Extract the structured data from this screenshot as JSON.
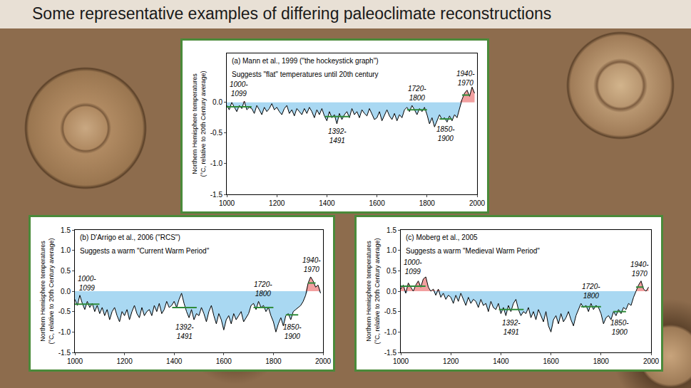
{
  "title": "Some representative examples of differing paleoclimate reconstructions",
  "chart_data": [
    {
      "type": "line",
      "title": "(a) Mann et al., 1999 (\"the hockeystick graph\")",
      "subtitle": "Suggests \"flat\" temperatures until 20th century",
      "y_label": "Northern Hemisphere temperatures (°C, relative to 20th Century average)",
      "color": "#000000",
      "x": [
        1000,
        1010,
        1020,
        1030,
        1040,
        1050,
        1060,
        1070,
        1080,
        1090,
        1100,
        1110,
        1120,
        1130,
        1140,
        1150,
        1160,
        1170,
        1180,
        1190,
        1200,
        1210,
        1220,
        1230,
        1240,
        1250,
        1260,
        1270,
        1280,
        1290,
        1300,
        1310,
        1320,
        1330,
        1340,
        1350,
        1360,
        1370,
        1380,
        1390,
        1400,
        1410,
        1420,
        1430,
        1440,
        1450,
        1460,
        1470,
        1480,
        1490,
        1500,
        1510,
        1520,
        1530,
        1540,
        1550,
        1560,
        1570,
        1580,
        1590,
        1600,
        1610,
        1620,
        1630,
        1640,
        1650,
        1660,
        1670,
        1680,
        1690,
        1700,
        1710,
        1720,
        1730,
        1740,
        1750,
        1760,
        1770,
        1780,
        1790,
        1800,
        1810,
        1820,
        1830,
        1840,
        1850,
        1860,
        1870,
        1880,
        1890,
        1900,
        1910,
        1920,
        1930,
        1940,
        1950,
        1960,
        1970,
        1980,
        1990
      ],
      "values": [
        -0.05,
        -0.12,
        0.0,
        -0.08,
        -0.15,
        -0.05,
        -0.1,
        0.02,
        -0.12,
        -0.08,
        -0.1,
        -0.18,
        -0.05,
        -0.12,
        -0.2,
        -0.08,
        -0.15,
        -0.1,
        -0.02,
        -0.12,
        -0.08,
        -0.15,
        -0.2,
        -0.1,
        -0.05,
        -0.18,
        -0.12,
        -0.22,
        -0.1,
        -0.15,
        -0.2,
        -0.1,
        -0.18,
        -0.08,
        -0.15,
        -0.25,
        -0.12,
        -0.2,
        -0.1,
        -0.22,
        -0.3,
        -0.15,
        -0.25,
        -0.2,
        -0.35,
        -0.18,
        -0.28,
        -0.2,
        -0.15,
        -0.25,
        -0.1,
        -0.2,
        -0.15,
        -0.25,
        -0.12,
        -0.18,
        -0.22,
        -0.1,
        -0.2,
        -0.28,
        -0.25,
        -0.15,
        -0.3,
        -0.2,
        -0.12,
        -0.22,
        -0.28,
        -0.18,
        -0.3,
        -0.2,
        -0.25,
        -0.12,
        -0.08,
        -0.15,
        -0.05,
        -0.12,
        -0.2,
        -0.1,
        -0.15,
        -0.08,
        -0.2,
        -0.35,
        -0.25,
        -0.4,
        -0.3,
        -0.2,
        -0.28,
        -0.25,
        -0.32,
        -0.22,
        -0.3,
        -0.2,
        -0.25,
        -0.1,
        0.05,
        0.15,
        0.2,
        0.1,
        0.25,
        0.15
      ],
      "periods": [
        {
          "label": "1000-1099",
          "start": 1000,
          "end": 1099,
          "mean": -0.07
        },
        {
          "label": "1392-1491",
          "start": 1392,
          "end": 1491,
          "mean": -0.23
        },
        {
          "label": "1720-1800",
          "start": 1720,
          "end": 1800,
          "mean": -0.12
        },
        {
          "label": "1850-1900",
          "start": 1850,
          "end": 1900,
          "mean": -0.27
        },
        {
          "label": "1940-1970",
          "start": 1940,
          "end": 1970,
          "mean": 0.12
        }
      ],
      "xlim": [
        1000,
        2000
      ],
      "xticks": [
        1000,
        1200,
        1400,
        1600,
        1800,
        2000
      ],
      "ylim": [
        -1.5,
        0.8
      ],
      "yticks": [
        {
          "value": 0,
          "label": "0.0"
        },
        -0.5,
        {
          "value": -1,
          "label": "-1.0"
        },
        -1.5
      ],
      "grid": false
    },
    {
      "type": "line",
      "title": "(b) D'Arrigo et al., 2006 (\"RCS\")",
      "subtitle": "Suggests a warm \"Current Warm Period\"",
      "y_label": "Northern Hemisphere temperatures (°C, relative to 20th Century average)",
      "color": "#000000",
      "x": [
        1000,
        1010,
        1020,
        1030,
        1040,
        1050,
        1060,
        1070,
        1080,
        1090,
        1100,
        1110,
        1120,
        1130,
        1140,
        1150,
        1160,
        1170,
        1180,
        1190,
        1200,
        1210,
        1220,
        1230,
        1240,
        1250,
        1260,
        1270,
        1280,
        1290,
        1300,
        1310,
        1320,
        1330,
        1340,
        1350,
        1360,
        1370,
        1380,
        1390,
        1400,
        1410,
        1420,
        1430,
        1440,
        1450,
        1460,
        1470,
        1480,
        1490,
        1500,
        1510,
        1520,
        1530,
        1540,
        1550,
        1560,
        1570,
        1580,
        1590,
        1600,
        1610,
        1620,
        1630,
        1640,
        1650,
        1660,
        1670,
        1680,
        1690,
        1700,
        1710,
        1720,
        1730,
        1740,
        1750,
        1760,
        1770,
        1780,
        1790,
        1800,
        1810,
        1820,
        1830,
        1840,
        1850,
        1860,
        1870,
        1880,
        1890,
        1900,
        1910,
        1920,
        1930,
        1940,
        1950,
        1960,
        1970,
        1980,
        1990
      ],
      "values": [
        -0.2,
        -0.35,
        -0.1,
        -0.3,
        -0.45,
        -0.25,
        -0.4,
        -0.3,
        -0.5,
        -0.35,
        -0.55,
        -0.4,
        -0.6,
        -0.45,
        -0.7,
        -0.5,
        -0.4,
        -0.6,
        -0.75,
        -0.5,
        -0.6,
        -0.45,
        -0.7,
        -0.5,
        -0.35,
        -0.55,
        -0.65,
        -0.4,
        -0.6,
        -0.5,
        -0.45,
        -0.6,
        -0.35,
        -0.5,
        -0.3,
        -0.55,
        -0.45,
        -0.25,
        -0.4,
        -0.35,
        -0.25,
        -0.4,
        -0.2,
        -0.05,
        -0.3,
        -0.5,
        -0.65,
        -0.45,
        -0.7,
        -0.55,
        -0.6,
        -0.4,
        -0.55,
        -0.75,
        -0.5,
        -0.35,
        -0.6,
        -0.8,
        -0.55,
        -0.7,
        -0.95,
        -0.7,
        -0.6,
        -0.8,
        -0.55,
        -0.7,
        -0.6,
        -0.5,
        -0.75,
        -0.65,
        -0.55,
        -0.35,
        -0.3,
        -0.45,
        -0.25,
        -0.4,
        -0.35,
        -0.5,
        -0.4,
        -0.6,
        -0.75,
        -1.0,
        -0.8,
        -0.65,
        -0.85,
        -0.6,
        -0.55,
        -0.7,
        -0.5,
        -0.45,
        -0.4,
        -0.35,
        -0.25,
        -0.1,
        0.2,
        0.35,
        0.25,
        0.1,
        0.15,
        -0.05
      ],
      "periods": [
        {
          "label": "1000-1099",
          "start": 1000,
          "end": 1099,
          "mean": -0.32
        },
        {
          "label": "1392-1491",
          "start": 1392,
          "end": 1491,
          "mean": -0.4
        },
        {
          "label": "1720-1800",
          "start": 1720,
          "end": 1800,
          "mean": -0.4
        },
        {
          "label": "1850-1900",
          "start": 1850,
          "end": 1900,
          "mean": -0.58
        },
        {
          "label": "1940-1970",
          "start": 1940,
          "end": 1970,
          "mean": 0.2
        }
      ],
      "xlim": [
        1000,
        2000
      ],
      "xticks": [
        1000,
        1200,
        1400,
        1600,
        1800,
        2000
      ],
      "ylim": [
        -1.5,
        1.5
      ],
      "yticks": [
        1.5,
        {
          "value": 1,
          "label": "1.0"
        },
        0.5,
        {
          "value": 0,
          "label": "0.0"
        },
        -0.5,
        {
          "value": -1,
          "label": "-1.0"
        },
        -1.5
      ],
      "grid": false
    },
    {
      "type": "line",
      "title": "(c) Moberg et al., 2005",
      "subtitle": "Suggests a warm \"Medieval Warm Period\"",
      "y_label": "Northern Hemisphere temperatures (°C, relative to 20th Century average)",
      "color": "#000000",
      "x": [
        1000,
        1010,
        1020,
        1030,
        1040,
        1050,
        1060,
        1070,
        1080,
        1090,
        1100,
        1110,
        1120,
        1130,
        1140,
        1150,
        1160,
        1170,
        1180,
        1190,
        1200,
        1210,
        1220,
        1230,
        1240,
        1250,
        1260,
        1270,
        1280,
        1290,
        1300,
        1310,
        1320,
        1330,
        1340,
        1350,
        1360,
        1370,
        1380,
        1390,
        1400,
        1410,
        1420,
        1430,
        1440,
        1450,
        1460,
        1470,
        1480,
        1490,
        1500,
        1510,
        1520,
        1530,
        1540,
        1550,
        1560,
        1570,
        1580,
        1590,
        1600,
        1610,
        1620,
        1630,
        1640,
        1650,
        1660,
        1670,
        1680,
        1690,
        1700,
        1710,
        1720,
        1730,
        1740,
        1750,
        1760,
        1770,
        1780,
        1790,
        1800,
        1810,
        1820,
        1830,
        1840,
        1850,
        1860,
        1870,
        1880,
        1890,
        1900,
        1910,
        1920,
        1930,
        1940,
        1950,
        1960,
        1970,
        1980,
        1990
      ],
      "values": [
        0.05,
        0.15,
        -0.05,
        0.2,
        0.1,
        0.0,
        0.15,
        0.25,
        0.1,
        0.3,
        0.35,
        0.1,
        0.0,
        0.05,
        -0.1,
        0.05,
        -0.15,
        -0.05,
        -0.2,
        -0.1,
        -0.15,
        -0.3,
        -0.1,
        -0.25,
        -0.05,
        -0.2,
        -0.35,
        -0.15,
        -0.3,
        -0.2,
        -0.25,
        -0.4,
        -0.2,
        -0.35,
        -0.3,
        -0.5,
        -0.25,
        -0.4,
        -0.45,
        -0.3,
        -0.55,
        -0.4,
        -0.6,
        -0.35,
        -0.5,
        -0.3,
        -0.2,
        -0.45,
        -0.6,
        -0.5,
        -0.55,
        -0.4,
        -0.65,
        -0.5,
        -0.7,
        -0.45,
        -0.6,
        -0.75,
        -0.5,
        -0.85,
        -1.0,
        -0.7,
        -0.6,
        -0.8,
        -0.55,
        -0.75,
        -0.65,
        -0.5,
        -0.7,
        -0.85,
        -0.6,
        -0.45,
        -0.3,
        -0.4,
        -0.35,
        -0.5,
        -0.3,
        -0.45,
        -0.35,
        -0.4,
        -0.55,
        -0.8,
        -0.65,
        -0.6,
        -0.7,
        -0.5,
        -0.6,
        -0.45,
        -0.55,
        -0.4,
        -0.45,
        -0.3,
        -0.35,
        -0.15,
        0.0,
        0.15,
        0.25,
        0.05,
        0.0,
        0.1
      ],
      "periods": [
        {
          "label": "1000-1099",
          "start": 1000,
          "end": 1099,
          "mean": 0.12
        },
        {
          "label": "1392-1491",
          "start": 1392,
          "end": 1491,
          "mean": -0.45
        },
        {
          "label": "1720-1800",
          "start": 1720,
          "end": 1800,
          "mean": -0.38
        },
        {
          "label": "1850-1900",
          "start": 1850,
          "end": 1900,
          "mean": -0.5
        },
        {
          "label": "1940-1970",
          "start": 1940,
          "end": 1970,
          "mean": 0.1
        }
      ],
      "xlim": [
        1000,
        2000
      ],
      "xticks": [
        1000,
        1200,
        1400,
        1600,
        1800,
        2000
      ],
      "ylim": [
        -1.5,
        1.5
      ],
      "yticks": [
        1.5,
        {
          "value": 1,
          "label": "1.0"
        },
        0.5,
        {
          "value": 0,
          "label": "0.0"
        },
        -0.5,
        {
          "value": -1,
          "label": "-1.0"
        },
        -1.5
      ],
      "grid": false
    }
  ]
}
